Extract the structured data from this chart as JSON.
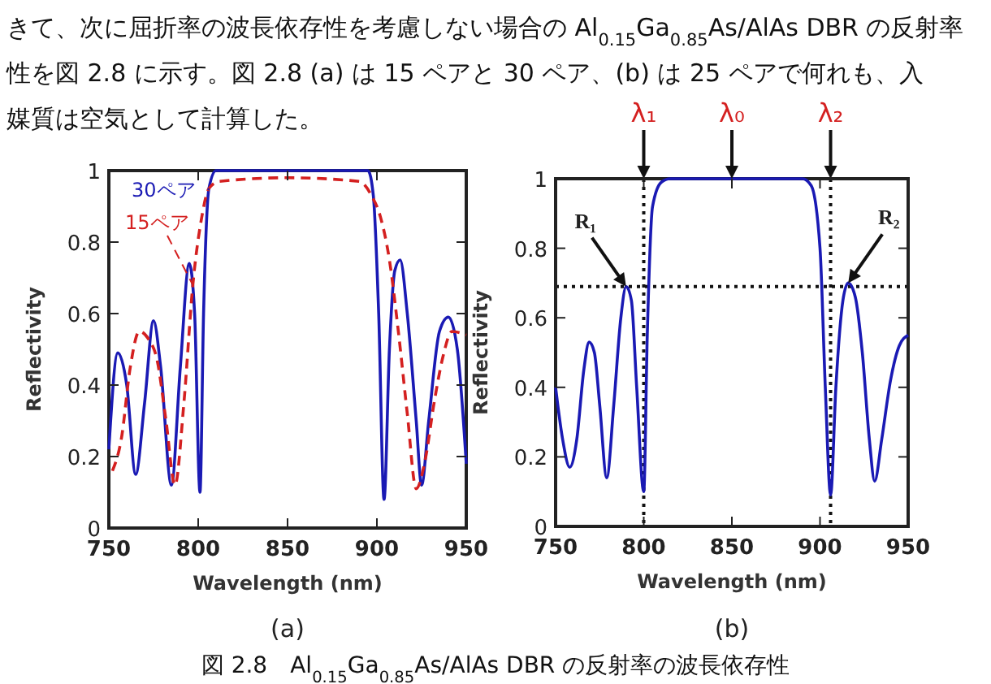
{
  "chart_data": [
    {
      "type": "line",
      "subtitle": "(a)",
      "xlabel": "Wavelength (nm)",
      "ylabel": "Reflectivity",
      "xlim": [
        750,
        950
      ],
      "ylim": [
        0,
        1
      ],
      "xticks": [
        750,
        800,
        850,
        900,
        950
      ],
      "yticks": [
        0,
        0.2,
        0.4,
        0.6,
        0.8,
        1
      ],
      "grid": false,
      "legend": false,
      "annotations": [
        "きて、次に屈折率の波長依存性を考慮しない場合の Al$_{0.15}$Ga$_{0.85}$As/AlAs DBR の反射率",
        "性を図 2.8 に示す。図 2.8 (a) は 15 ペアと 30 ペア、(b) は 25 ペアで何れも、入",
        "媒質は空気として計算した。"
      ],
      "series": [
        {
          "name": "30ペア",
          "color": "#1a1ab4",
          "line_style": "solid",
          "x": [
            750,
            755,
            760,
            765,
            770,
            775,
            779,
            785,
            790,
            795,
            798,
            801,
            803,
            806,
            810,
            850,
            895,
            898,
            901,
            904,
            907,
            910,
            913,
            917,
            922,
            925,
            929,
            935,
            940,
            945,
            950
          ],
          "values": [
            0.22,
            0.49,
            0.4,
            0.15,
            0.35,
            0.58,
            0.45,
            0.12,
            0.45,
            0.74,
            0.6,
            0.1,
            0.6,
            0.95,
            1,
            1,
            1,
            0.93,
            0.6,
            0.08,
            0.5,
            0.72,
            0.75,
            0.6,
            0.3,
            0.12,
            0.3,
            0.55,
            0.59,
            0.5,
            0.18
          ]
        },
        {
          "name": "15ペア",
          "color": "#d42020",
          "line_style": "dashed",
          "x": [
            752,
            757,
            762,
            767,
            772,
            777,
            782,
            787,
            792,
            797,
            802,
            806,
            812,
            850,
            890,
            897,
            902,
            907,
            912,
            917,
            922,
            927,
            932,
            937,
            942,
            950
          ],
          "values": [
            0.16,
            0.25,
            0.45,
            0.55,
            0.53,
            0.47,
            0.3,
            0.12,
            0.35,
            0.68,
            0.87,
            0.95,
            0.97,
            0.98,
            0.97,
            0.93,
            0.87,
            0.75,
            0.55,
            0.32,
            0.11,
            0.19,
            0.35,
            0.48,
            0.55,
            0.54
          ]
        }
      ]
    },
    {
      "type": "line",
      "subtitle": "(b)",
      "xlabel": "Wavelength (nm)",
      "ylabel": "Reflectivity",
      "xlim": [
        750,
        950
      ],
      "ylim": [
        0,
        1
      ],
      "xticks": [
        750,
        800,
        850,
        900,
        950
      ],
      "yticks": [
        0,
        0.2,
        0.4,
        0.6,
        0.8,
        1
      ],
      "grid": false,
      "legend": false,
      "ref_lines": [
        {
          "axis": "x",
          "value": 800,
          "label": "λ₁",
          "line_style": "dotted"
        },
        {
          "axis": "x",
          "value": 906,
          "label": "λ₂",
          "line_style": "dotted"
        },
        {
          "axis": "y",
          "value": 0.69,
          "line_style": "dotted"
        }
      ],
      "annotations": [
        {
          "text": "λ₀",
          "x": 850,
          "y": 1
        },
        {
          "text": "R₁",
          "x": 790,
          "y": 0.69
        },
        {
          "text": "R₂",
          "x": 916,
          "y": 0.7
        },
        "図 2.8　Al$_{0.15}$Ga$_{0.85}$As/AlAs DBR の反射率の波長依存性"
      ],
      "series": [
        {
          "color": "#1a1ab4",
          "line_style": "solid",
          "x": [
            750,
            754,
            758,
            762,
            766,
            769,
            772,
            775,
            779,
            783,
            787,
            790,
            793,
            796,
            800,
            802,
            805,
            810,
            815,
            850,
            890,
            895,
            900,
            903,
            906,
            909,
            913,
            916,
            920,
            924,
            928,
            931,
            935,
            940,
            945,
            950
          ],
          "values": [
            0.4,
            0.25,
            0.17,
            0.25,
            0.45,
            0.53,
            0.5,
            0.35,
            0.14,
            0.35,
            0.6,
            0.69,
            0.65,
            0.4,
            0.1,
            0.55,
            0.92,
            0.99,
            1,
            1,
            1,
            0.98,
            0.8,
            0.4,
            0.09,
            0.4,
            0.65,
            0.7,
            0.66,
            0.5,
            0.25,
            0.13,
            0.25,
            0.42,
            0.52,
            0.55
          ]
        }
      ]
    }
  ]
}
